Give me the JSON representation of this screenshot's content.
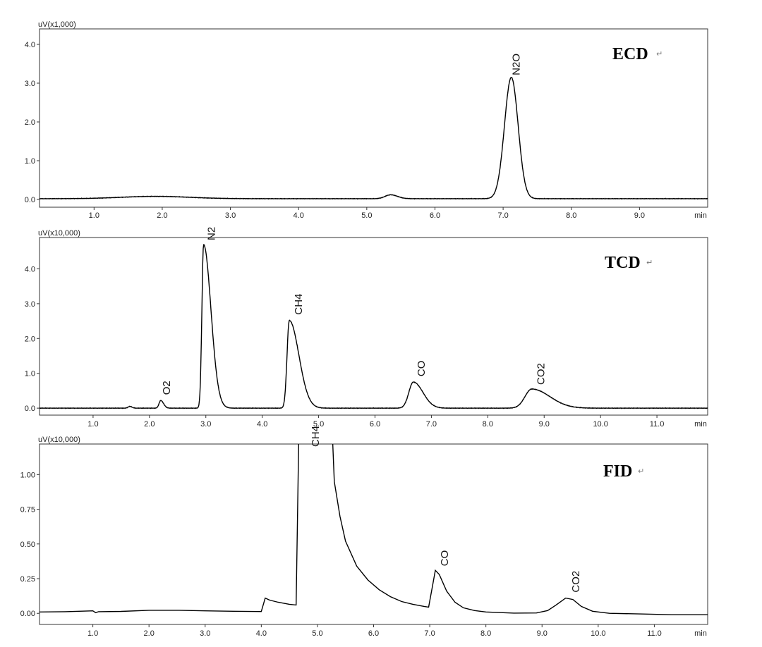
{
  "chart_data": [
    {
      "type": "line",
      "detector": "ECD",
      "unit_label": "uV(x1,000)",
      "xlabel": "min",
      "ylabel": "",
      "xlim": [
        0.2,
        10.0
      ],
      "ylim": [
        -0.2,
        4.4
      ],
      "x_ticks": [
        1.0,
        2.0,
        3.0,
        4.0,
        5.0,
        6.0,
        7.0,
        8.0,
        9.0
      ],
      "x_tick_labels": [
        "1.0",
        "2.0",
        "3.0",
        "4.0",
        "5.0",
        "6.0",
        "7.0",
        "8.0",
        "9.0"
      ],
      "y_ticks": [
        0.0,
        1.0,
        2.0,
        3.0,
        4.0
      ],
      "y_tick_labels": [
        "0.0",
        "1.0",
        "2.0",
        "3.0",
        "4.0"
      ],
      "baseline": 0.02,
      "peaks": [
        {
          "name": "",
          "rt": 1.9,
          "height": 0.06,
          "sigma_left": 0.5,
          "sigma_right": 0.5
        },
        {
          "name": "",
          "rt": 5.35,
          "height": 0.1,
          "sigma_left": 0.08,
          "sigma_right": 0.1
        },
        {
          "name": "N2O",
          "rt": 7.12,
          "height": 3.13,
          "sigma_left": 0.1,
          "sigma_right": 0.1
        }
      ]
    },
    {
      "type": "line",
      "detector": "TCD",
      "unit_label": "uV(x10,000)",
      "xlabel": "min",
      "ylabel": "",
      "xlim": [
        0.05,
        11.9
      ],
      "ylim": [
        -0.2,
        4.9
      ],
      "x_ticks": [
        1.0,
        2.0,
        3.0,
        4.0,
        5.0,
        6.0,
        7.0,
        8.0,
        9.0,
        10.0,
        11.0
      ],
      "x_tick_labels": [
        "1.0",
        "2.0",
        "3.0",
        "4.0",
        "5.0",
        "6.0",
        "7.0",
        "8.0",
        "9.0",
        "10.0",
        "11.0"
      ],
      "y_ticks": [
        0.0,
        1.0,
        2.0,
        3.0,
        4.0
      ],
      "y_tick_labels": [
        "0.0",
        "1.0",
        "2.0",
        "3.0",
        "4.0"
      ],
      "baseline": 0.0,
      "peaks": [
        {
          "name": "",
          "rt": 1.65,
          "height": 0.05,
          "sigma_left": 0.03,
          "sigma_right": 0.04
        },
        {
          "name": "O2",
          "rt": 2.2,
          "height": 0.22,
          "sigma_left": 0.03,
          "sigma_right": 0.05
        },
        {
          "name": "N2",
          "rt": 2.96,
          "height": 4.7,
          "sigma_left": 0.03,
          "sigma_right": 0.13
        },
        {
          "name": "CH4",
          "rt": 4.48,
          "height": 2.52,
          "sigma_left": 0.04,
          "sigma_right": 0.17
        },
        {
          "name": "CO",
          "rt": 6.68,
          "height": 0.75,
          "sigma_left": 0.08,
          "sigma_right": 0.17
        },
        {
          "name": "CO2",
          "rt": 8.78,
          "height": 0.55,
          "sigma_left": 0.12,
          "sigma_right": 0.32
        }
      ]
    },
    {
      "type": "line",
      "detector": "FID",
      "unit_label": "uV(x10,000)",
      "xlabel": "min",
      "ylabel": "",
      "xlim": [
        0.05,
        11.95
      ],
      "ylim": [
        -0.08,
        1.22
      ],
      "x_ticks": [
        1.0,
        2.0,
        3.0,
        4.0,
        5.0,
        6.0,
        7.0,
        8.0,
        9.0,
        10.0,
        11.0
      ],
      "x_tick_labels": [
        "1.0",
        "2.0",
        "3.0",
        "4.0",
        "5.0",
        "6.0",
        "7.0",
        "8.0",
        "9.0",
        "10.0",
        "11.0"
      ],
      "y_ticks": [
        0.0,
        0.25,
        0.5,
        0.75,
        1.0
      ],
      "y_tick_labels": [
        "0.00",
        "0.25",
        "0.50",
        "0.75",
        "1.00"
      ],
      "baseline": 0.0,
      "points": [
        [
          0.05,
          0.01
        ],
        [
          0.5,
          0.012
        ],
        [
          1.0,
          0.018
        ],
        [
          1.05,
          0.005
        ],
        [
          1.1,
          0.012
        ],
        [
          1.5,
          0.014
        ],
        [
          2.0,
          0.022
        ],
        [
          2.5,
          0.022
        ],
        [
          3.0,
          0.018
        ],
        [
          3.5,
          0.015
        ],
        [
          4.0,
          0.013
        ],
        [
          4.07,
          0.11
        ],
        [
          4.15,
          0.095
        ],
        [
          4.3,
          0.08
        ],
        [
          4.5,
          0.065
        ],
        [
          4.62,
          0.06
        ],
        [
          4.67,
          1.35
        ],
        [
          5.26,
          1.35
        ],
        [
          5.3,
          0.95
        ],
        [
          5.4,
          0.7
        ],
        [
          5.5,
          0.52
        ],
        [
          5.7,
          0.34
        ],
        [
          5.9,
          0.24
        ],
        [
          6.1,
          0.17
        ],
        [
          6.3,
          0.12
        ],
        [
          6.5,
          0.085
        ],
        [
          6.7,
          0.065
        ],
        [
          6.9,
          0.05
        ],
        [
          6.98,
          0.045
        ],
        [
          7.05,
          0.2
        ],
        [
          7.1,
          0.31
        ],
        [
          7.17,
          0.28
        ],
        [
          7.3,
          0.16
        ],
        [
          7.45,
          0.08
        ],
        [
          7.6,
          0.04
        ],
        [
          7.8,
          0.02
        ],
        [
          8.0,
          0.01
        ],
        [
          8.5,
          0.002
        ],
        [
          8.9,
          0.003
        ],
        [
          9.1,
          0.02
        ],
        [
          9.25,
          0.06
        ],
        [
          9.42,
          0.11
        ],
        [
          9.55,
          0.1
        ],
        [
          9.7,
          0.05
        ],
        [
          9.9,
          0.015
        ],
        [
          10.2,
          0.0
        ],
        [
          10.8,
          -0.005
        ],
        [
          11.3,
          -0.01
        ],
        [
          11.95,
          -0.01
        ]
      ],
      "peaks": [
        {
          "name": "CH4",
          "rt": 4.95,
          "height": 1.35
        },
        {
          "name": "CO",
          "rt": 7.1,
          "height": 0.31
        },
        {
          "name": "CO2",
          "rt": 9.44,
          "height": 0.11
        }
      ]
    }
  ]
}
